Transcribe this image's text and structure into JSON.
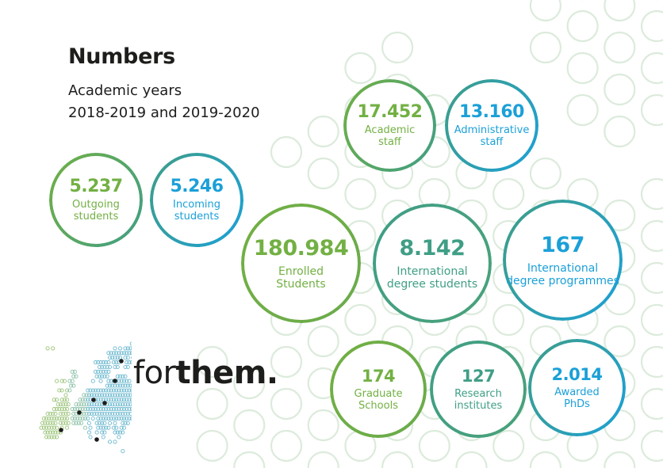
{
  "header": {
    "title": "Numbers",
    "subtitle_line1": "Academic years",
    "subtitle_line2": "2018-2019 and 2019-2020"
  },
  "colors": {
    "green": "#72b043",
    "teal": "#3f9e86",
    "blue": "#1ba0d8",
    "background_ring": "#dcebdc",
    "text_dark": "#1d1d1b"
  },
  "stats": [
    {
      "id": "academic-staff",
      "value": "17.452",
      "label_line1": "Academic",
      "label_line2": "staff"
    },
    {
      "id": "administrative-staff",
      "value": "13.160",
      "label_line1": "Administrative",
      "label_line2": "staff"
    },
    {
      "id": "outgoing-students",
      "value": "5.237",
      "label_line1": "Outgoing",
      "label_line2": "students"
    },
    {
      "id": "incoming-students",
      "value": "5.246",
      "label_line1": "Incoming",
      "label_line2": "students"
    },
    {
      "id": "enrolled-students",
      "value": "180.984",
      "label_line1": "Enrolled",
      "label_line2": "Students"
    },
    {
      "id": "international-degree-students",
      "value": "8.142",
      "label_line1": "International",
      "label_line2": "degree students"
    },
    {
      "id": "international-degree-programmes",
      "value": "167",
      "label_line1": "International",
      "label_line2": "degree programmes"
    },
    {
      "id": "graduate-schools",
      "value": "174",
      "label_line1": "Graduate",
      "label_line2": "Schools"
    },
    {
      "id": "research-institutes",
      "value": "127",
      "label_line1": "Research",
      "label_line2": "institutes"
    },
    {
      "id": "awarded-phds",
      "value": "2.014",
      "label_line1": "Awarded",
      "label_line2": "PhDs"
    }
  ],
  "logo": {
    "wordmark_regular": "for",
    "wordmark_bold": "them."
  }
}
